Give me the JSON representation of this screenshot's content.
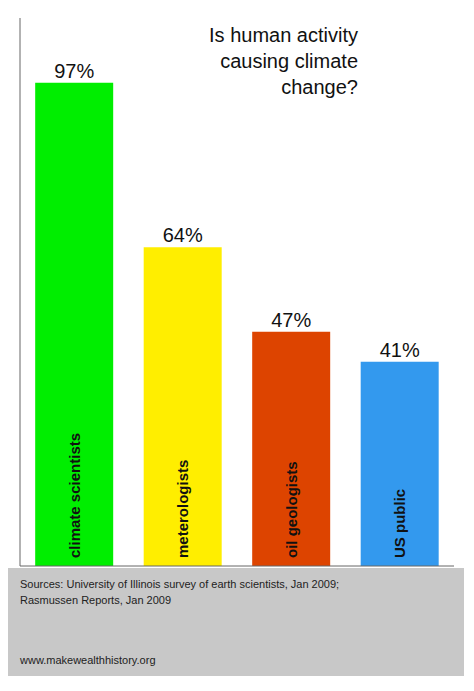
{
  "chart_data": {
    "type": "bar",
    "title": "Is human activity\ncausing climate\nchange?",
    "categories": [
      "climate scientists",
      "meterologists",
      "oil geologists",
      "US public"
    ],
    "values": [
      97,
      64,
      47,
      41
    ],
    "value_labels": [
      "97%",
      "64%",
      "47%",
      "41%"
    ],
    "colors": [
      "#00ee00",
      "#ffee00",
      "#dd4400",
      "#3399ee"
    ],
    "ylim": [
      0,
      110
    ],
    "data_labels": true,
    "tick_labels": false,
    "grid": false,
    "annotations": [
      "Sources: University of Illinois survey of earth scientists, Jan 2009;\nRasmussen Reports, Jan 2009",
      "www.makewealthhistory.org"
    ]
  }
}
